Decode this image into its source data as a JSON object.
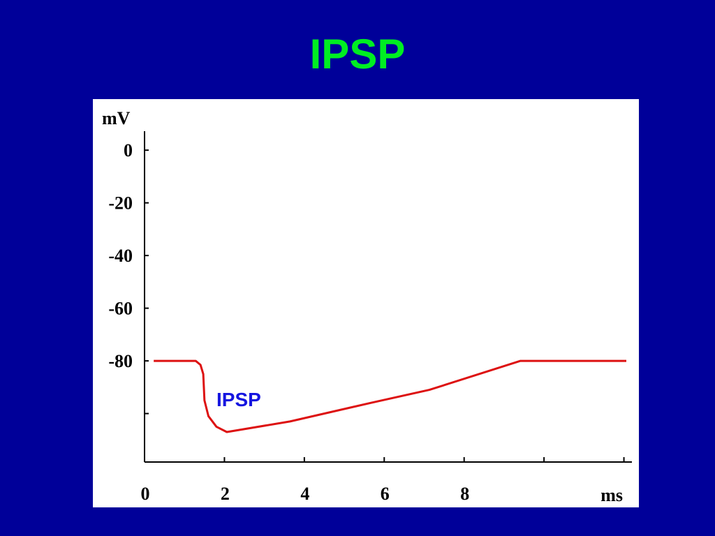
{
  "chart_data": {
    "type": "line",
    "title": "IPSP",
    "y_label": "mV",
    "x_label": "ms",
    "annotation": "IPSP",
    "x": [
      0.23,
      1.28,
      1.4,
      1.47,
      1.5,
      1.6,
      1.8,
      2.06,
      3.64,
      5.65,
      7.13,
      9.41,
      12.06
    ],
    "series": [
      {
        "name": "IPSP",
        "color": "#dd1111",
        "values": [
          -80,
          -80,
          -81.5,
          -85,
          -95,
          -101,
          -105,
          -107,
          -103,
          -96,
          -91,
          -80,
          -80
        ]
      }
    ],
    "xlim": [
      0,
      12.2
    ],
    "xticks": [
      0,
      2,
      4,
      6,
      8,
      {
        "value": 10,
        "label": null
      },
      {
        "value": 12,
        "label": null
      }
    ],
    "ylim": [
      -118.4,
      7.2
    ],
    "yticks": [
      0,
      -20,
      -40,
      -60,
      -80,
      {
        "value": -100,
        "label": null
      }
    ]
  }
}
